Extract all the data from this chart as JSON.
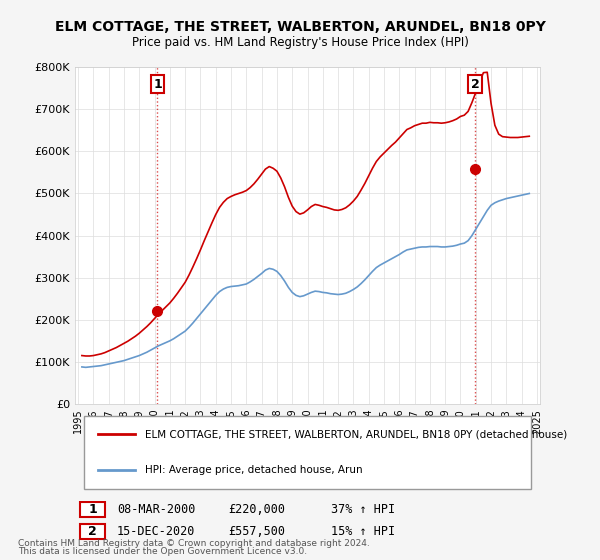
{
  "title": "ELM COTTAGE, THE STREET, WALBERTON, ARUNDEL, BN18 0PY",
  "subtitle": "Price paid vs. HM Land Registry's House Price Index (HPI)",
  "legend_label_red": "ELM COTTAGE, THE STREET, WALBERTON, ARUNDEL, BN18 0PY (detached house)",
  "legend_label_blue": "HPI: Average price, detached house, Arun",
  "footer_line1": "Contains HM Land Registry data © Crown copyright and database right 2024.",
  "footer_line2": "This data is licensed under the Open Government Licence v3.0.",
  "table_rows": [
    {
      "num": "1",
      "date": "08-MAR-2000",
      "price": "£220,000",
      "change": "37% ↑ HPI"
    },
    {
      "num": "2",
      "date": "15-DEC-2020",
      "price": "£557,500",
      "change": "15% ↑ HPI"
    }
  ],
  "sale1_year": 2000.19,
  "sale1_price": 220000,
  "sale2_year": 2020.96,
  "sale2_price": 557500,
  "ylim": [
    0,
    800000
  ],
  "yticks": [
    0,
    100000,
    200000,
    300000,
    400000,
    500000,
    600000,
    700000,
    800000
  ],
  "red_color": "#cc0000",
  "blue_color": "#6699cc",
  "background_color": "#f5f5f5",
  "plot_bg_color": "#ffffff",
  "grid_color": "#dddddd",
  "hpi_data": {
    "years": [
      1995.25,
      1995.5,
      1995.75,
      1996.0,
      1996.25,
      1996.5,
      1996.75,
      1997.0,
      1997.25,
      1997.5,
      1997.75,
      1998.0,
      1998.25,
      1998.5,
      1998.75,
      1999.0,
      1999.25,
      1999.5,
      1999.75,
      2000.0,
      2000.25,
      2000.5,
      2000.75,
      2001.0,
      2001.25,
      2001.5,
      2001.75,
      2002.0,
      2002.25,
      2002.5,
      2002.75,
      2003.0,
      2003.25,
      2003.5,
      2003.75,
      2004.0,
      2004.25,
      2004.5,
      2004.75,
      2005.0,
      2005.25,
      2005.5,
      2005.75,
      2006.0,
      2006.25,
      2006.5,
      2006.75,
      2007.0,
      2007.25,
      2007.5,
      2007.75,
      2008.0,
      2008.25,
      2008.5,
      2008.75,
      2009.0,
      2009.25,
      2009.5,
      2009.75,
      2010.0,
      2010.25,
      2010.5,
      2010.75,
      2011.0,
      2011.25,
      2011.5,
      2011.75,
      2012.0,
      2012.25,
      2012.5,
      2012.75,
      2013.0,
      2013.25,
      2013.5,
      2013.75,
      2014.0,
      2014.25,
      2014.5,
      2014.75,
      2015.0,
      2015.25,
      2015.5,
      2015.75,
      2016.0,
      2016.25,
      2016.5,
      2016.75,
      2017.0,
      2017.25,
      2017.5,
      2017.75,
      2018.0,
      2018.25,
      2018.5,
      2018.75,
      2019.0,
      2019.25,
      2019.5,
      2019.75,
      2020.0,
      2020.25,
      2020.5,
      2020.75,
      2021.0,
      2021.25,
      2021.5,
      2021.75,
      2022.0,
      2022.25,
      2022.5,
      2022.75,
      2023.0,
      2023.25,
      2023.5,
      2023.75,
      2024.0,
      2024.25,
      2024.5
    ],
    "values": [
      88000,
      87000,
      88000,
      89000,
      90000,
      91000,
      93000,
      95000,
      97000,
      99000,
      101000,
      103000,
      106000,
      109000,
      112000,
      115000,
      119000,
      123000,
      128000,
      133000,
      138000,
      142000,
      146000,
      150000,
      155000,
      161000,
      167000,
      173000,
      182000,
      192000,
      203000,
      214000,
      225000,
      236000,
      247000,
      258000,
      267000,
      273000,
      277000,
      279000,
      280000,
      281000,
      283000,
      285000,
      290000,
      296000,
      303000,
      310000,
      318000,
      322000,
      320000,
      315000,
      305000,
      292000,
      277000,
      265000,
      258000,
      255000,
      257000,
      261000,
      265000,
      268000,
      267000,
      265000,
      264000,
      262000,
      261000,
      260000,
      261000,
      263000,
      267000,
      272000,
      278000,
      286000,
      295000,
      305000,
      315000,
      324000,
      330000,
      335000,
      340000,
      345000,
      350000,
      355000,
      361000,
      366000,
      368000,
      370000,
      372000,
      373000,
      373000,
      374000,
      374000,
      374000,
      373000,
      373000,
      374000,
      375000,
      377000,
      380000,
      382000,
      388000,
      400000,
      415000,
      430000,
      445000,
      460000,
      472000,
      478000,
      482000,
      485000,
      488000,
      490000,
      492000,
      494000,
      496000,
      498000,
      500000
    ]
  },
  "property_data": {
    "years": [
      1995.25,
      1995.5,
      1995.75,
      1996.0,
      1996.25,
      1996.5,
      1996.75,
      1997.0,
      1997.25,
      1997.5,
      1997.75,
      1998.0,
      1998.25,
      1998.5,
      1998.75,
      1999.0,
      1999.25,
      1999.5,
      1999.75,
      2000.0,
      2000.25,
      2000.5,
      2000.75,
      2001.0,
      2001.25,
      2001.5,
      2001.75,
      2002.0,
      2002.25,
      2002.5,
      2002.75,
      2003.0,
      2003.25,
      2003.5,
      2003.75,
      2004.0,
      2004.25,
      2004.5,
      2004.75,
      2005.0,
      2005.25,
      2005.5,
      2005.75,
      2006.0,
      2006.25,
      2006.5,
      2006.75,
      2007.0,
      2007.25,
      2007.5,
      2007.75,
      2008.0,
      2008.25,
      2008.5,
      2008.75,
      2009.0,
      2009.25,
      2009.5,
      2009.75,
      2010.0,
      2010.25,
      2010.5,
      2010.75,
      2011.0,
      2011.25,
      2011.5,
      2011.75,
      2012.0,
      2012.25,
      2012.5,
      2012.75,
      2013.0,
      2013.25,
      2013.5,
      2013.75,
      2014.0,
      2014.25,
      2014.5,
      2014.75,
      2015.0,
      2015.25,
      2015.5,
      2015.75,
      2016.0,
      2016.25,
      2016.5,
      2016.75,
      2017.0,
      2017.25,
      2017.5,
      2017.75,
      2018.0,
      2018.25,
      2018.5,
      2018.75,
      2019.0,
      2019.25,
      2019.5,
      2019.75,
      2020.0,
      2020.25,
      2020.5,
      2020.75,
      2021.0,
      2021.25,
      2021.5,
      2021.75,
      2022.0,
      2022.25,
      2022.5,
      2022.75,
      2023.0,
      2023.25,
      2023.5,
      2023.75,
      2024.0,
      2024.25,
      2024.5
    ],
    "values": [
      115000,
      114000,
      114000,
      115000,
      117000,
      119000,
      122000,
      126000,
      130000,
      134000,
      139000,
      144000,
      149000,
      155000,
      161000,
      168000,
      176000,
      184000,
      193000,
      203000,
      213000,
      222000,
      231000,
      240000,
      251000,
      263000,
      276000,
      289000,
      306000,
      325000,
      345000,
      366000,
      388000,
      409000,
      430000,
      450000,
      467000,
      479000,
      488000,
      493000,
      497000,
      500000,
      503000,
      507000,
      514000,
      523000,
      534000,
      546000,
      558000,
      564000,
      560000,
      553000,
      537000,
      516000,
      491000,
      470000,
      457000,
      451000,
      454000,
      461000,
      469000,
      474000,
      472000,
      469000,
      467000,
      464000,
      461000,
      460000,
      462000,
      466000,
      473000,
      482000,
      493000,
      508000,
      524000,
      542000,
      560000,
      576000,
      587000,
      596000,
      605000,
      614000,
      622000,
      632000,
      642000,
      652000,
      656000,
      661000,
      664000,
      667000,
      667000,
      669000,
      668000,
      668000,
      667000,
      668000,
      670000,
      673000,
      677000,
      683000,
      686000,
      695000,
      716000,
      740000,
      764000,
      787000,
      788000,
      714000,
      662000,
      641000,
      635000,
      634000,
      633000,
      633000,
      633000,
      634000,
      635000,
      636000
    ]
  }
}
